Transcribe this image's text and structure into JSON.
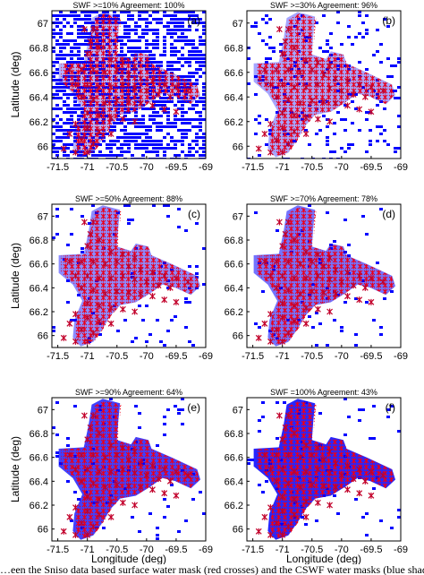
{
  "caption_fragment": "…een the Sniso data based surface water mask (red crosses) and the CSWF water masks (blue shade…",
  "colors": {
    "water_mask": "#0000ff",
    "sar_crosses": "#e8001c",
    "marker_stroke": "#c2002a",
    "axes": "#000000"
  },
  "chart_data": [
    {
      "type": "scatter",
      "panel_label": "(a)",
      "title": "SWF >=10%   Agreement: 100%",
      "xlabel": "",
      "ylabel": "Latitude (deg)",
      "xlim": [
        -71.6,
        -69
      ],
      "ylim": [
        65.9,
        67.1
      ],
      "xticks": [
        -71.5,
        -71,
        -70.5,
        -70,
        -69.5,
        -69
      ],
      "xtick_labels": [
        "-71.5",
        "-71",
        "-70.5",
        "-70",
        "-69.5",
        "-69"
      ],
      "yticks": [
        66,
        66.2,
        66.4,
        66.6,
        66.8,
        67
      ],
      "ytick_labels": [
        "66",
        "66.2",
        "66.4",
        "66.6",
        "66.8",
        "67"
      ],
      "series": [
        {
          "name": "",
          "marker": "cross",
          "color": "#e8001c",
          "swf_threshold": 10,
          "x": [
            -71.05,
            -70.9,
            -70.95,
            -71.0,
            -70.8,
            -71.3,
            -71.1,
            -70.9,
            -70.7,
            -70.5,
            -70.3,
            -70.1,
            -69.9,
            -69.7,
            -69.5,
            -69.3,
            -70.6,
            -70.4,
            -70.2,
            -71.2,
            -71.0,
            -70.8,
            -70.6,
            -70.4,
            -70.2,
            -70.0,
            -69.8,
            -69.6,
            -71.1,
            -70.9,
            -70.7,
            -70.5,
            -70.3,
            -70.1,
            -69.9,
            -69.7,
            -69.5,
            -71.0,
            -70.8,
            -70.6,
            -70.4,
            -70.2,
            -71.2,
            -71.0,
            -70.8,
            -70.6,
            -71.3,
            -71.1,
            -70.9,
            -71.4,
            -71.2,
            -71.0
          ],
          "y": [
            66.95,
            66.95,
            66.85,
            66.75,
            66.8,
            66.62,
            66.62,
            66.62,
            66.6,
            66.62,
            66.58,
            66.55,
            66.53,
            66.5,
            66.48,
            66.45,
            66.7,
            66.68,
            66.65,
            66.5,
            66.5,
            66.48,
            66.48,
            66.5,
            66.47,
            66.45,
            66.42,
            66.4,
            66.4,
            66.38,
            66.35,
            66.37,
            66.36,
            66.35,
            66.33,
            66.3,
            66.28,
            66.27,
            66.25,
            66.23,
            66.22,
            66.2,
            66.18,
            66.15,
            66.12,
            66.1,
            66.1,
            66.05,
            66.02,
            65.98,
            65.95,
            65.95
          ]
        }
      ]
    },
    {
      "type": "scatter",
      "panel_label": "(b)",
      "title": "SWF >=30%   Agreement: 96%",
      "xlabel": "",
      "ylabel": "",
      "xlim": [
        -71.6,
        -69
      ],
      "ylim": [
        65.9,
        67.1
      ],
      "xticks": [
        -71.5,
        -71,
        -70.5,
        -70,
        -69.5,
        -69
      ],
      "xtick_labels": [
        "-71.5",
        "-71",
        "-70.5",
        "-70",
        "-69.5",
        "-69"
      ],
      "yticks": [
        66,
        66.2,
        66.4,
        66.6,
        66.8,
        67
      ],
      "ytick_labels": [
        "66",
        "66.2",
        "66.4",
        "66.6",
        "66.8",
        "67"
      ],
      "series": [
        {
          "name": "",
          "marker": "cross",
          "color": "#e8001c",
          "swf_threshold": 30,
          "x": [
            -71.05,
            -70.9,
            -70.95,
            -71.0,
            -70.8,
            -71.3,
            -71.1,
            -70.9,
            -70.7,
            -70.5,
            -70.3,
            -70.1,
            -69.9,
            -69.7,
            -69.5,
            -69.3,
            -70.6,
            -70.4,
            -70.2,
            -71.2,
            -71.0,
            -70.8,
            -70.6,
            -70.4,
            -70.2,
            -70.0,
            -69.8,
            -69.6,
            -71.1,
            -70.9,
            -70.7,
            -70.5,
            -70.3,
            -70.1,
            -69.9,
            -69.7,
            -69.5,
            -71.0,
            -70.8,
            -70.6,
            -70.4,
            -70.2,
            -71.2,
            -71.0,
            -70.8,
            -70.6,
            -71.3,
            -71.1,
            -70.9,
            -71.4,
            -71.2,
            -71.0
          ],
          "y": [
            66.95,
            66.95,
            66.85,
            66.75,
            66.8,
            66.62,
            66.62,
            66.62,
            66.6,
            66.62,
            66.58,
            66.55,
            66.53,
            66.5,
            66.48,
            66.45,
            66.7,
            66.68,
            66.65,
            66.5,
            66.5,
            66.48,
            66.48,
            66.5,
            66.47,
            66.45,
            66.42,
            66.4,
            66.4,
            66.38,
            66.35,
            66.37,
            66.36,
            66.35,
            66.33,
            66.3,
            66.28,
            66.27,
            66.25,
            66.23,
            66.22,
            66.2,
            66.18,
            66.15,
            66.12,
            66.1,
            66.1,
            66.05,
            66.02,
            65.98,
            65.95,
            65.95
          ]
        }
      ]
    },
    {
      "type": "scatter",
      "panel_label": "(c)",
      "title": "SWF >=50%   Agreement: 88%",
      "xlabel": "",
      "ylabel": "Latitude (deg)",
      "xlim": [
        -71.6,
        -69
      ],
      "ylim": [
        65.9,
        67.1
      ],
      "xticks": [
        -71.5,
        -71,
        -70.5,
        -70,
        -69.5,
        -69
      ],
      "xtick_labels": [
        "-71.5",
        "-71",
        "-70.5",
        "-70",
        "-69.5",
        "-69"
      ],
      "yticks": [
        66,
        66.2,
        66.4,
        66.6,
        66.8,
        67
      ],
      "ytick_labels": [
        "66",
        "66.2",
        "66.4",
        "66.6",
        "66.8",
        "67"
      ],
      "series": [
        {
          "name": "",
          "marker": "cross",
          "color": "#e8001c",
          "swf_threshold": 50,
          "x": [
            -71.05,
            -70.9,
            -70.95,
            -71.0,
            -70.8,
            -71.3,
            -71.1,
            -70.9,
            -70.7,
            -70.5,
            -70.3,
            -70.1,
            -69.9,
            -69.7,
            -69.5,
            -69.3,
            -70.6,
            -70.4,
            -70.2,
            -71.2,
            -71.0,
            -70.8,
            -70.6,
            -70.4,
            -70.2,
            -70.0,
            -69.8,
            -69.6,
            -71.1,
            -70.9,
            -70.7,
            -70.5,
            -70.3,
            -70.1,
            -69.9,
            -69.7,
            -69.5,
            -71.0,
            -70.8,
            -70.6,
            -70.4,
            -70.2,
            -71.2,
            -71.0,
            -70.8,
            -70.6,
            -71.3,
            -71.1,
            -70.9,
            -71.4,
            -71.2,
            -71.0
          ],
          "y": [
            66.95,
            66.95,
            66.85,
            66.75,
            66.8,
            66.62,
            66.62,
            66.62,
            66.6,
            66.62,
            66.58,
            66.55,
            66.53,
            66.5,
            66.48,
            66.45,
            66.7,
            66.68,
            66.65,
            66.5,
            66.5,
            66.48,
            66.48,
            66.5,
            66.47,
            66.45,
            66.42,
            66.4,
            66.4,
            66.38,
            66.35,
            66.37,
            66.36,
            66.35,
            66.33,
            66.3,
            66.28,
            66.27,
            66.25,
            66.23,
            66.22,
            66.2,
            66.18,
            66.15,
            66.12,
            66.1,
            66.1,
            66.05,
            66.02,
            65.98,
            65.95,
            65.95
          ]
        }
      ]
    },
    {
      "type": "scatter",
      "panel_label": "(d)",
      "title": "SWF >=70%   Agreement: 78%",
      "xlabel": "",
      "ylabel": "",
      "xlim": [
        -71.6,
        -69
      ],
      "ylim": [
        65.9,
        67.1
      ],
      "xticks": [
        -71.5,
        -71,
        -70.5,
        -70,
        -69.5,
        -69
      ],
      "xtick_labels": [
        "-71.5",
        "-71",
        "-70.5",
        "-70",
        "-69.5",
        "-69"
      ],
      "yticks": [
        66,
        66.2,
        66.4,
        66.6,
        66.8,
        67
      ],
      "ytick_labels": [
        "66",
        "66.2",
        "66.4",
        "66.6",
        "66.8",
        "67"
      ],
      "series": [
        {
          "name": "",
          "marker": "cross",
          "color": "#e8001c",
          "swf_threshold": 70,
          "x": [
            -71.05,
            -70.9,
            -70.95,
            -71.0,
            -70.8,
            -71.3,
            -71.1,
            -70.9,
            -70.7,
            -70.5,
            -70.3,
            -70.1,
            -69.9,
            -69.7,
            -69.5,
            -69.3,
            -70.6,
            -70.4,
            -70.2,
            -71.2,
            -71.0,
            -70.8,
            -70.6,
            -70.4,
            -70.2,
            -70.0,
            -69.8,
            -69.6,
            -71.1,
            -70.9,
            -70.7,
            -70.5,
            -70.3,
            -70.1,
            -69.9,
            -69.7,
            -69.5,
            -71.0,
            -70.8,
            -70.6,
            -70.4,
            -70.2,
            -71.2,
            -71.0,
            -70.8,
            -70.6,
            -71.3,
            -71.1,
            -70.9,
            -71.4,
            -71.2,
            -71.0
          ],
          "y": [
            66.95,
            66.95,
            66.85,
            66.75,
            66.8,
            66.62,
            66.62,
            66.62,
            66.6,
            66.62,
            66.58,
            66.55,
            66.53,
            66.5,
            66.48,
            66.45,
            66.7,
            66.68,
            66.65,
            66.5,
            66.5,
            66.48,
            66.48,
            66.5,
            66.47,
            66.45,
            66.42,
            66.4,
            66.4,
            66.38,
            66.35,
            66.37,
            66.36,
            66.35,
            66.33,
            66.3,
            66.28,
            66.27,
            66.25,
            66.23,
            66.22,
            66.2,
            66.18,
            66.15,
            66.12,
            66.1,
            66.1,
            66.05,
            66.02,
            65.98,
            65.95,
            65.95
          ]
        }
      ]
    },
    {
      "type": "scatter",
      "panel_label": "(e)",
      "title": "SWF >=90%   Agreement: 64%",
      "xlabel": "Longitude (deg)",
      "ylabel": "Latitude (deg)",
      "xlim": [
        -71.6,
        -69
      ],
      "ylim": [
        65.9,
        67.1
      ],
      "xticks": [
        -71.5,
        -71,
        -70.5,
        -70,
        -69.5,
        -69
      ],
      "xtick_labels": [
        "-71.5",
        "-71",
        "-70.5",
        "-70",
        "-69.5",
        "-69"
      ],
      "yticks": [
        66,
        66.2,
        66.4,
        66.6,
        66.8,
        67
      ],
      "ytick_labels": [
        "66",
        "66.2",
        "66.4",
        "66.6",
        "66.8",
        "67"
      ],
      "series": [
        {
          "name": "",
          "marker": "cross",
          "color": "#e8001c",
          "swf_threshold": 90,
          "x": [
            -71.05,
            -70.9,
            -70.95,
            -71.0,
            -70.8,
            -71.3,
            -71.1,
            -70.9,
            -70.7,
            -70.5,
            -70.3,
            -70.1,
            -69.9,
            -69.7,
            -69.5,
            -69.3,
            -70.6,
            -70.4,
            -70.2,
            -71.2,
            -71.0,
            -70.8,
            -70.6,
            -70.4,
            -70.2,
            -70.0,
            -69.8,
            -69.6,
            -71.1,
            -70.9,
            -70.7,
            -70.5,
            -70.3,
            -70.1,
            -69.9,
            -69.7,
            -69.5,
            -71.0,
            -70.8,
            -70.6,
            -70.4,
            -70.2,
            -71.2,
            -71.0,
            -70.8,
            -70.6,
            -71.3,
            -71.1,
            -70.9,
            -71.4,
            -71.2,
            -71.0
          ],
          "y": [
            66.95,
            66.95,
            66.85,
            66.75,
            66.8,
            66.62,
            66.62,
            66.62,
            66.6,
            66.62,
            66.58,
            66.55,
            66.53,
            66.5,
            66.48,
            66.45,
            66.7,
            66.68,
            66.65,
            66.5,
            66.5,
            66.48,
            66.48,
            66.5,
            66.47,
            66.45,
            66.42,
            66.4,
            66.4,
            66.38,
            66.35,
            66.37,
            66.36,
            66.35,
            66.33,
            66.3,
            66.28,
            66.27,
            66.25,
            66.23,
            66.22,
            66.2,
            66.18,
            66.15,
            66.12,
            66.1,
            66.1,
            66.05,
            66.02,
            65.98,
            65.95,
            65.95
          ]
        }
      ]
    },
    {
      "type": "scatter",
      "panel_label": "(f)",
      "title": "SWF =100%   Agreement: 43%",
      "xlabel": "Longitude (deg)",
      "ylabel": "",
      "xlim": [
        -71.6,
        -69
      ],
      "ylim": [
        65.9,
        67.1
      ],
      "xticks": [
        -71.5,
        -71,
        -70.5,
        -70,
        -69.5,
        -69
      ],
      "xtick_labels": [
        "-71.5",
        "-71",
        "-70.5",
        "-70",
        "-69.5",
        "-69"
      ],
      "yticks": [
        66,
        66.2,
        66.4,
        66.6,
        66.8,
        67
      ],
      "ytick_labels": [
        "66",
        "66.2",
        "66.4",
        "66.6",
        "66.8",
        "67"
      ],
      "series": [
        {
          "name": "",
          "marker": "cross",
          "color": "#e8001c",
          "swf_threshold": 100,
          "x": [
            -71.05,
            -70.9,
            -70.95,
            -71.0,
            -70.8,
            -71.3,
            -71.1,
            -70.9,
            -70.7,
            -70.5,
            -70.3,
            -70.1,
            -69.9,
            -69.7,
            -69.5,
            -69.3,
            -70.6,
            -70.4,
            -70.2,
            -71.2,
            -71.0,
            -70.8,
            -70.6,
            -70.4,
            -70.2,
            -70.0,
            -69.8,
            -69.6,
            -71.1,
            -70.9,
            -70.7,
            -70.5,
            -70.3,
            -70.1,
            -69.9,
            -69.7,
            -69.5,
            -71.0,
            -70.8,
            -70.6,
            -70.4,
            -70.2,
            -71.2,
            -71.0,
            -70.8,
            -70.6,
            -71.3,
            -71.1,
            -70.9,
            -71.4,
            -71.2,
            -71.0
          ],
          "y": [
            66.95,
            66.95,
            66.85,
            66.75,
            66.8,
            66.62,
            66.62,
            66.62,
            66.6,
            66.62,
            66.58,
            66.55,
            66.53,
            66.5,
            66.48,
            66.45,
            66.7,
            66.68,
            66.65,
            66.5,
            66.5,
            66.48,
            66.48,
            66.5,
            66.47,
            66.45,
            66.42,
            66.4,
            66.4,
            66.38,
            66.35,
            66.37,
            66.36,
            66.35,
            66.33,
            66.3,
            66.28,
            66.27,
            66.25,
            66.23,
            66.22,
            66.2,
            66.18,
            66.15,
            66.12,
            66.1,
            66.1,
            66.05,
            66.02,
            65.98,
            65.95,
            65.95
          ]
        }
      ]
    }
  ]
}
